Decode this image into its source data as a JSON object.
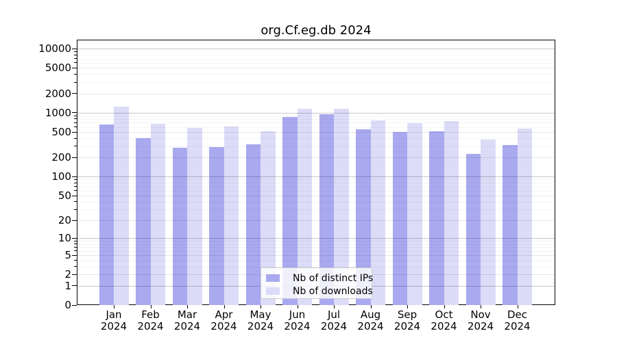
{
  "title": "org.Cf.eg.db 2024",
  "chart_data": {
    "type": "bar",
    "title": "org.Cf.eg.db 2024",
    "yscale": "log1p",
    "grid": true,
    "categories": [
      "Jan 2024",
      "Feb 2024",
      "Mar 2024",
      "Apr 2024",
      "May 2024",
      "Jun 2024",
      "Jul 2024",
      "Aug 2024",
      "Sep 2024",
      "Oct 2024",
      "Nov 2024",
      "Dec 2024"
    ],
    "series": [
      {
        "name": "Nb of distinct IPs",
        "color": "#a9a9f0",
        "values": [
          650,
          397,
          281,
          293,
          325,
          870,
          938,
          552,
          500,
          516,
          228,
          310
        ]
      },
      {
        "name": "Nb of downloads",
        "color": "#dcdcf8",
        "values": [
          1240,
          676,
          587,
          608,
          515,
          1165,
          1150,
          764,
          693,
          734,
          380,
          560
        ]
      }
    ],
    "y_tick_labels": [
      10000,
      5000,
      2000,
      1000,
      500,
      200,
      100,
      50,
      20,
      10,
      5,
      2,
      1,
      0
    ],
    "ylim": [
      0,
      13300
    ],
    "xlabel": "",
    "ylabel": "",
    "legend_position": "bottom-center"
  }
}
